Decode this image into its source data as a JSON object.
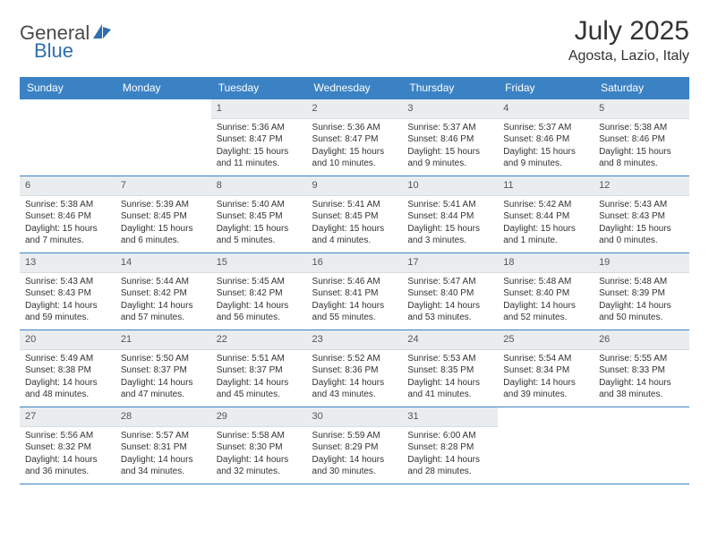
{
  "brand": {
    "name_a": "General",
    "name_b": "Blue",
    "logo_color": "#2f6fb0"
  },
  "title": "July 2025",
  "location": "Agosta, Lazio, Italy",
  "colors": {
    "header_bg": "#3b82c4",
    "daynum_bg": "#e9edef"
  },
  "days": [
    "Sunday",
    "Monday",
    "Tuesday",
    "Wednesday",
    "Thursday",
    "Friday",
    "Saturday"
  ],
  "weeks": [
    [
      null,
      null,
      {
        "n": "1",
        "sr": "Sunrise: 5:36 AM",
        "ss": "Sunset: 8:47 PM",
        "dl": "Daylight: 15 hours and 11 minutes."
      },
      {
        "n": "2",
        "sr": "Sunrise: 5:36 AM",
        "ss": "Sunset: 8:47 PM",
        "dl": "Daylight: 15 hours and 10 minutes."
      },
      {
        "n": "3",
        "sr": "Sunrise: 5:37 AM",
        "ss": "Sunset: 8:46 PM",
        "dl": "Daylight: 15 hours and 9 minutes."
      },
      {
        "n": "4",
        "sr": "Sunrise: 5:37 AM",
        "ss": "Sunset: 8:46 PM",
        "dl": "Daylight: 15 hours and 9 minutes."
      },
      {
        "n": "5",
        "sr": "Sunrise: 5:38 AM",
        "ss": "Sunset: 8:46 PM",
        "dl": "Daylight: 15 hours and 8 minutes."
      }
    ],
    [
      {
        "n": "6",
        "sr": "Sunrise: 5:38 AM",
        "ss": "Sunset: 8:46 PM",
        "dl": "Daylight: 15 hours and 7 minutes."
      },
      {
        "n": "7",
        "sr": "Sunrise: 5:39 AM",
        "ss": "Sunset: 8:45 PM",
        "dl": "Daylight: 15 hours and 6 minutes."
      },
      {
        "n": "8",
        "sr": "Sunrise: 5:40 AM",
        "ss": "Sunset: 8:45 PM",
        "dl": "Daylight: 15 hours and 5 minutes."
      },
      {
        "n": "9",
        "sr": "Sunrise: 5:41 AM",
        "ss": "Sunset: 8:45 PM",
        "dl": "Daylight: 15 hours and 4 minutes."
      },
      {
        "n": "10",
        "sr": "Sunrise: 5:41 AM",
        "ss": "Sunset: 8:44 PM",
        "dl": "Daylight: 15 hours and 3 minutes."
      },
      {
        "n": "11",
        "sr": "Sunrise: 5:42 AM",
        "ss": "Sunset: 8:44 PM",
        "dl": "Daylight: 15 hours and 1 minute."
      },
      {
        "n": "12",
        "sr": "Sunrise: 5:43 AM",
        "ss": "Sunset: 8:43 PM",
        "dl": "Daylight: 15 hours and 0 minutes."
      }
    ],
    [
      {
        "n": "13",
        "sr": "Sunrise: 5:43 AM",
        "ss": "Sunset: 8:43 PM",
        "dl": "Daylight: 14 hours and 59 minutes."
      },
      {
        "n": "14",
        "sr": "Sunrise: 5:44 AM",
        "ss": "Sunset: 8:42 PM",
        "dl": "Daylight: 14 hours and 57 minutes."
      },
      {
        "n": "15",
        "sr": "Sunrise: 5:45 AM",
        "ss": "Sunset: 8:42 PM",
        "dl": "Daylight: 14 hours and 56 minutes."
      },
      {
        "n": "16",
        "sr": "Sunrise: 5:46 AM",
        "ss": "Sunset: 8:41 PM",
        "dl": "Daylight: 14 hours and 55 minutes."
      },
      {
        "n": "17",
        "sr": "Sunrise: 5:47 AM",
        "ss": "Sunset: 8:40 PM",
        "dl": "Daylight: 14 hours and 53 minutes."
      },
      {
        "n": "18",
        "sr": "Sunrise: 5:48 AM",
        "ss": "Sunset: 8:40 PM",
        "dl": "Daylight: 14 hours and 52 minutes."
      },
      {
        "n": "19",
        "sr": "Sunrise: 5:48 AM",
        "ss": "Sunset: 8:39 PM",
        "dl": "Daylight: 14 hours and 50 minutes."
      }
    ],
    [
      {
        "n": "20",
        "sr": "Sunrise: 5:49 AM",
        "ss": "Sunset: 8:38 PM",
        "dl": "Daylight: 14 hours and 48 minutes."
      },
      {
        "n": "21",
        "sr": "Sunrise: 5:50 AM",
        "ss": "Sunset: 8:37 PM",
        "dl": "Daylight: 14 hours and 47 minutes."
      },
      {
        "n": "22",
        "sr": "Sunrise: 5:51 AM",
        "ss": "Sunset: 8:37 PM",
        "dl": "Daylight: 14 hours and 45 minutes."
      },
      {
        "n": "23",
        "sr": "Sunrise: 5:52 AM",
        "ss": "Sunset: 8:36 PM",
        "dl": "Daylight: 14 hours and 43 minutes."
      },
      {
        "n": "24",
        "sr": "Sunrise: 5:53 AM",
        "ss": "Sunset: 8:35 PM",
        "dl": "Daylight: 14 hours and 41 minutes."
      },
      {
        "n": "25",
        "sr": "Sunrise: 5:54 AM",
        "ss": "Sunset: 8:34 PM",
        "dl": "Daylight: 14 hours and 39 minutes."
      },
      {
        "n": "26",
        "sr": "Sunrise: 5:55 AM",
        "ss": "Sunset: 8:33 PM",
        "dl": "Daylight: 14 hours and 38 minutes."
      }
    ],
    [
      {
        "n": "27",
        "sr": "Sunrise: 5:56 AM",
        "ss": "Sunset: 8:32 PM",
        "dl": "Daylight: 14 hours and 36 minutes."
      },
      {
        "n": "28",
        "sr": "Sunrise: 5:57 AM",
        "ss": "Sunset: 8:31 PM",
        "dl": "Daylight: 14 hours and 34 minutes."
      },
      {
        "n": "29",
        "sr": "Sunrise: 5:58 AM",
        "ss": "Sunset: 8:30 PM",
        "dl": "Daylight: 14 hours and 32 minutes."
      },
      {
        "n": "30",
        "sr": "Sunrise: 5:59 AM",
        "ss": "Sunset: 8:29 PM",
        "dl": "Daylight: 14 hours and 30 minutes."
      },
      {
        "n": "31",
        "sr": "Sunrise: 6:00 AM",
        "ss": "Sunset: 8:28 PM",
        "dl": "Daylight: 14 hours and 28 minutes."
      },
      null,
      null
    ]
  ]
}
